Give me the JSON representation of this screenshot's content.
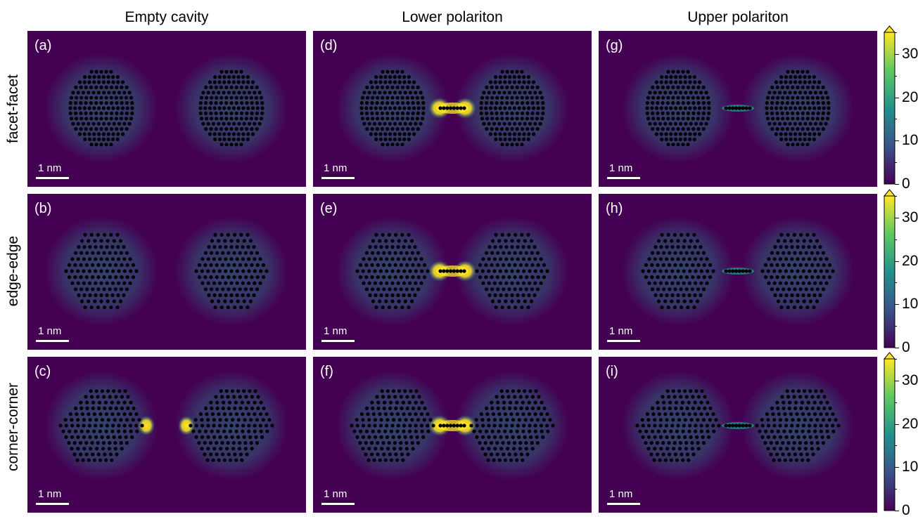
{
  "columns": [
    "Empty cavity",
    "Lower polariton",
    "Upper polariton"
  ],
  "rows": [
    "facet-facet",
    "edge-edge",
    "corner-corner"
  ],
  "panels": [
    [
      "(a)",
      "(d)",
      "(g)"
    ],
    [
      "(b)",
      "(e)",
      "(h)"
    ],
    [
      "(c)",
      "(f)",
      "(i)"
    ]
  ],
  "scale_label": "1 nm",
  "colorbar": {
    "ticks": [
      "0",
      "10",
      "20",
      "30"
    ],
    "range": [
      0,
      35
    ],
    "extend": "max",
    "colormap": "viridis"
  },
  "colors": {
    "background": "#440154",
    "glow": "#21918c",
    "hot": "#fde725",
    "atom": "#000000"
  }
}
